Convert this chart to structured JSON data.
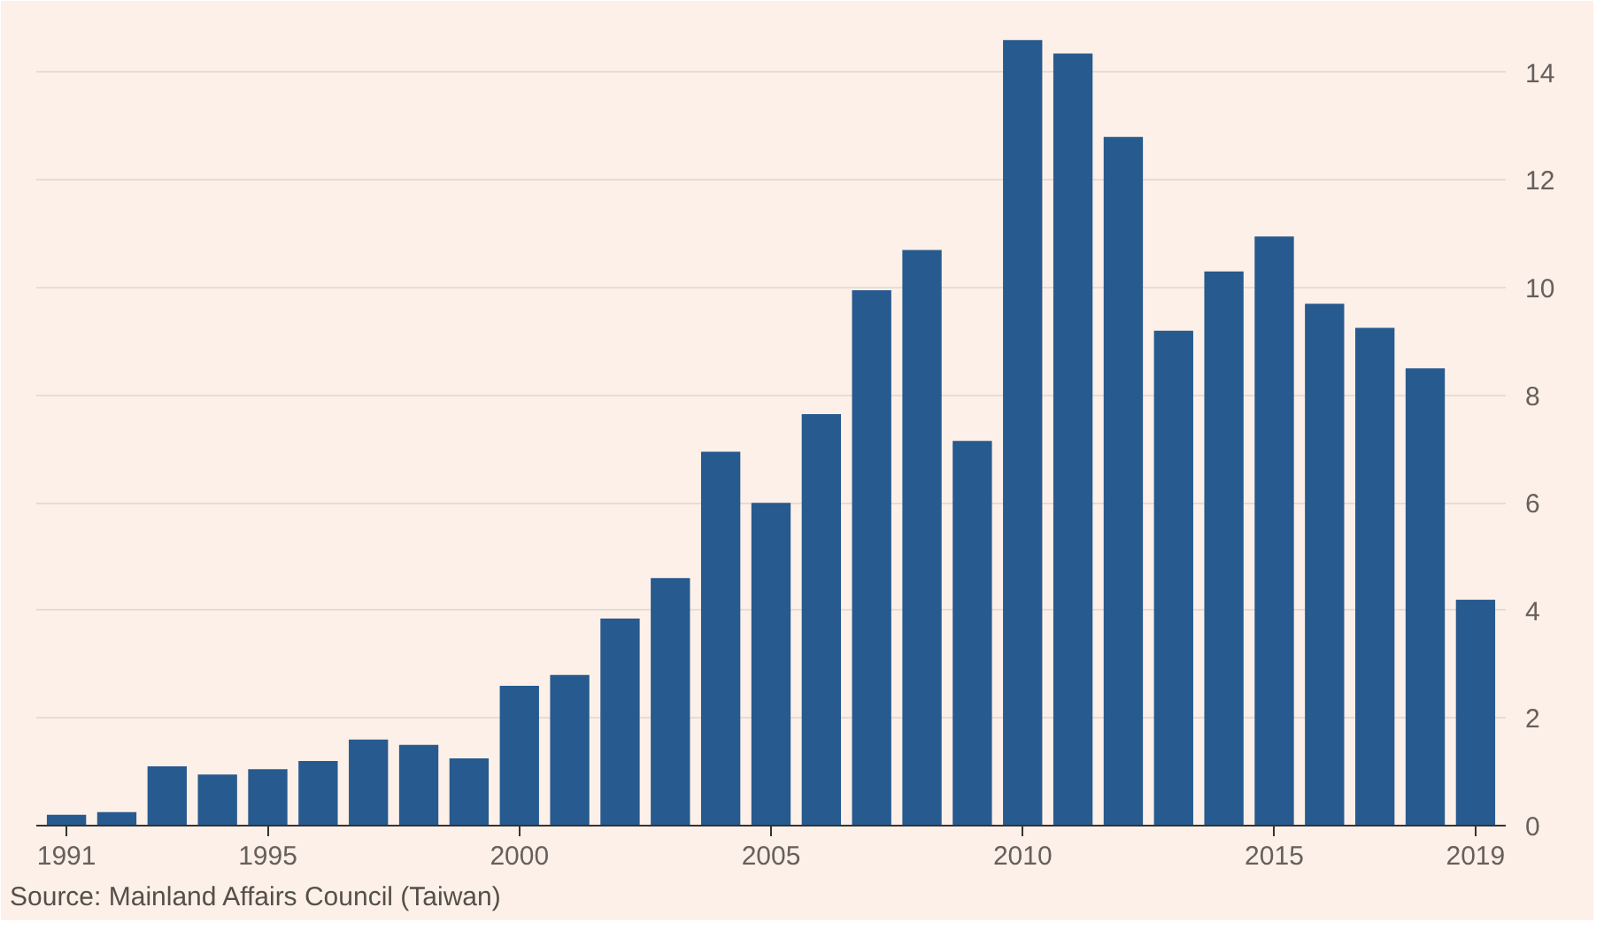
{
  "chart_data": {
    "type": "bar",
    "x": [
      1991,
      1992,
      1993,
      1994,
      1995,
      1996,
      1997,
      1998,
      1999,
      2000,
      2001,
      2002,
      2003,
      2004,
      2005,
      2006,
      2007,
      2008,
      2009,
      2010,
      2011,
      2012,
      2013,
      2014,
      2015,
      2016,
      2017,
      2018,
      2019
    ],
    "values": [
      0.2,
      0.25,
      1.1,
      0.95,
      1.05,
      1.2,
      1.6,
      1.5,
      1.25,
      2.6,
      2.8,
      3.85,
      4.6,
      6.95,
      6.0,
      7.65,
      9.95,
      10.7,
      7.15,
      14.6,
      14.35,
      12.8,
      9.2,
      10.3,
      10.95,
      9.7,
      9.25,
      8.5,
      4.2
    ],
    "color": "#275a8e",
    "xlim": [
      1990.4,
      2019.6
    ],
    "xticks": [
      1991,
      1995,
      2000,
      2005,
      2010,
      2015,
      2019
    ],
    "ylim": [
      0,
      15
    ],
    "yticks": [
      0,
      2,
      4,
      6,
      8,
      10,
      12,
      14
    ],
    "grid": "y",
    "annotations": [
      "Source: Mainland Affairs Council (Taiwan)"
    ]
  }
}
